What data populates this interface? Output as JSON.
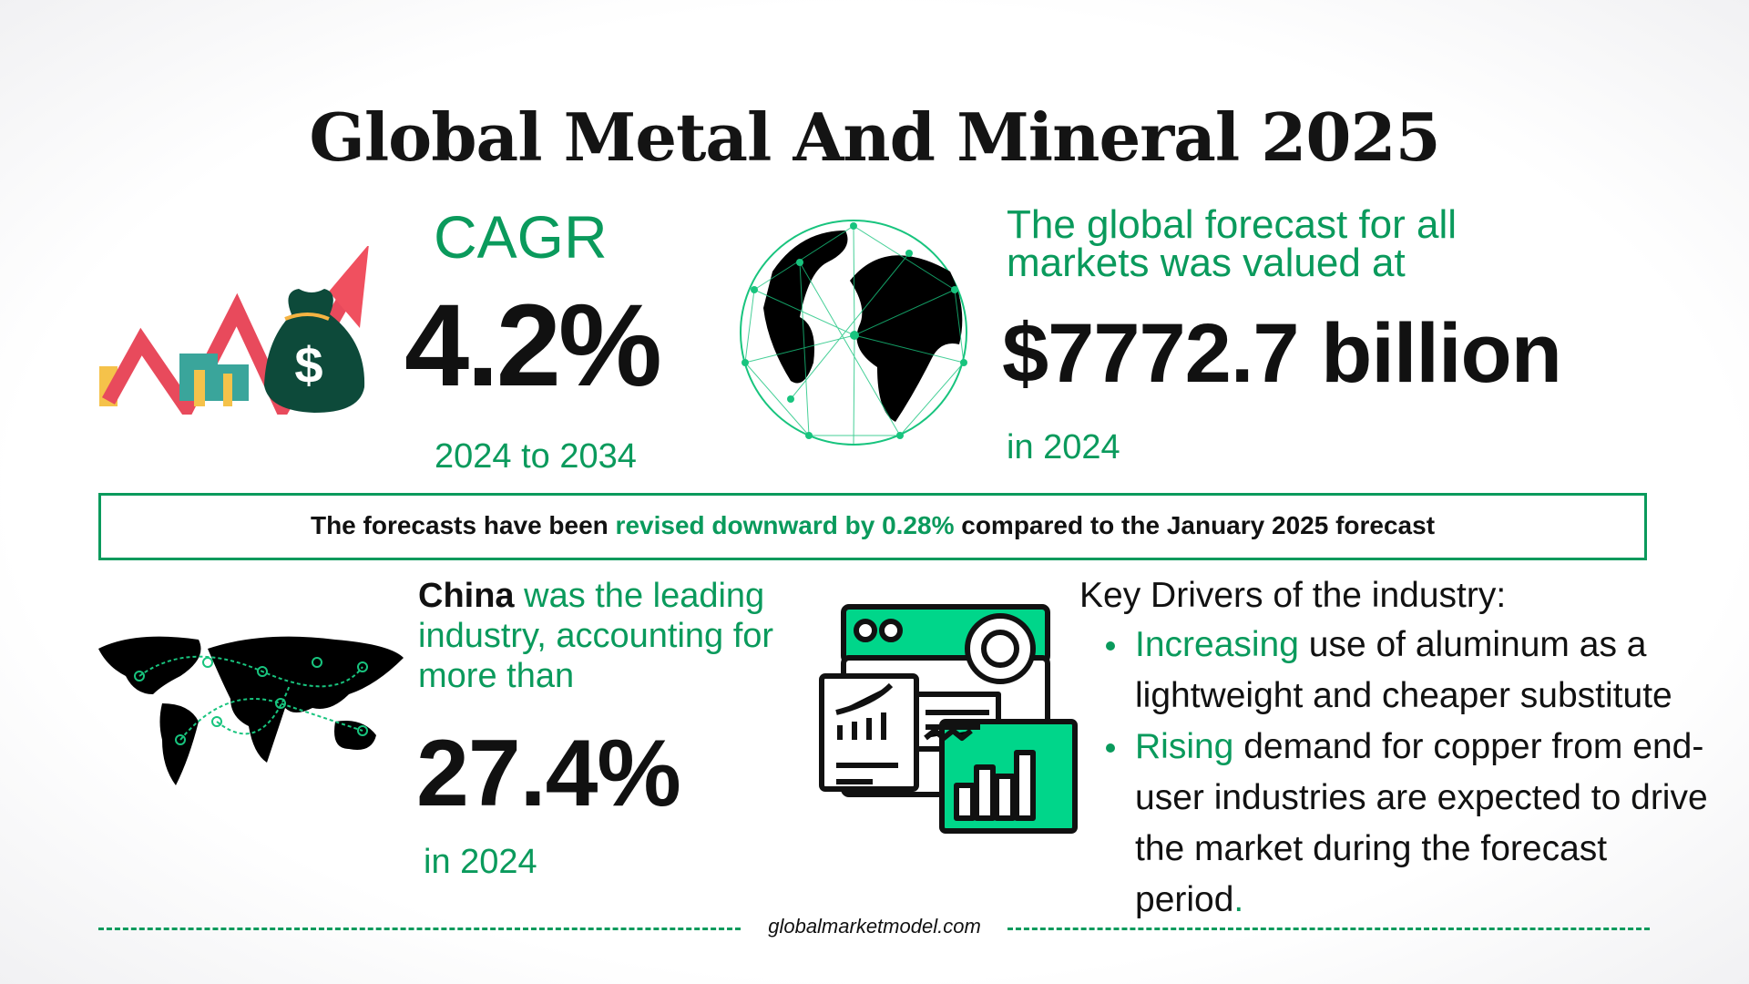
{
  "title": "Global Metal And Mineral 2025",
  "cagr": {
    "label": "CAGR",
    "value": "4.2%",
    "period": "2024 to 2034"
  },
  "forecast": {
    "label": "The global forecast for all markets was valued at",
    "value": "$7772.7 billion",
    "year": "in 2024"
  },
  "revision": {
    "prefix": "The forecasts have been ",
    "highlight": "revised downward by 0.28%",
    "suffix": " compared to the January 2025 forecast"
  },
  "china": {
    "country": "China",
    "text": " was the leading industry, accounting for more than",
    "value": "27.4%",
    "year": "in 2024"
  },
  "drivers": {
    "title": "Key Drivers of the industry:",
    "items": [
      {
        "highlight": "Increasing",
        "text": " use of aluminum as a lightweight and cheaper substitute"
      },
      {
        "highlight": "Rising",
        "text": " demand for copper from end-user industries are expected to drive the market during the forecast period",
        "end": "."
      }
    ]
  },
  "footer": "globalmarketmodel.com",
  "colors": {
    "accent": "#0a9a5c",
    "icon_green": "#00d68a",
    "arrow_red": "#f0505f",
    "bag": "#0d4a3a"
  },
  "icons": [
    "growth-arrow-money-icon",
    "wireframe-globe-icon",
    "world-map-network-icon",
    "analytics-dashboard-icon"
  ]
}
